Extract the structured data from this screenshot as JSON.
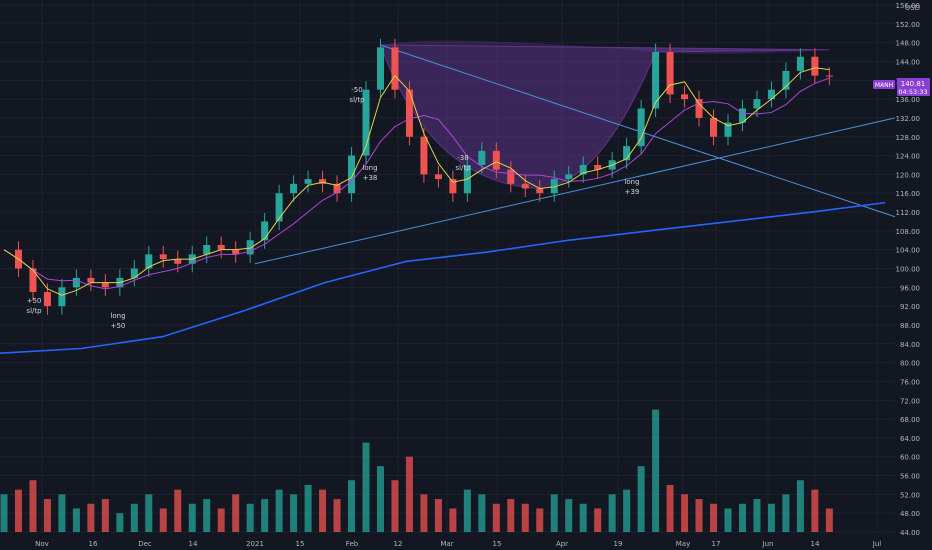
{
  "chart_data": {
    "type": "candlestick",
    "symbol": "MANH",
    "currency": "USD",
    "price_label": "140.81",
    "countdown": "04:53:33",
    "ylim": [
      44,
      156
    ],
    "y_ticks": [
      44,
      48,
      52,
      56,
      60,
      64,
      68,
      72,
      76,
      80,
      84,
      88,
      92,
      96,
      100,
      104,
      108,
      112,
      116,
      120,
      124,
      128,
      132,
      136,
      140,
      144,
      148,
      152,
      156
    ],
    "x_ticks": [
      "Nov",
      "16",
      "Dec",
      "14",
      "2021",
      "15",
      "Feb",
      "12",
      "Mar",
      "15",
      "Apr",
      "19",
      "May",
      "17",
      "Jun",
      "14",
      "Jul"
    ],
    "annotations": [
      {
        "lines": [
          "-50",
          "sl/tp"
        ],
        "color": "#d1d4dc"
      },
      {
        "lines": [
          "long",
          "+50"
        ],
        "color": "#d1d4dc"
      },
      {
        "lines": [
          "long",
          "+38"
        ],
        "color": "#d1d4dc"
      },
      {
        "lines": [
          "-38",
          "sl/tp"
        ],
        "color": "#d1d4dc"
      },
      {
        "lines": [
          "long",
          "+39"
        ],
        "color": "#d1d4dc"
      },
      {
        "lines": [
          "+50",
          "sl/tp"
        ],
        "color": "#d1d4dc"
      }
    ],
    "ohlc_close_points": [
      [
        0,
        104
      ],
      [
        4,
        100
      ],
      [
        8,
        95
      ],
      [
        12,
        92
      ],
      [
        16,
        96
      ],
      [
        20,
        98
      ],
      [
        24,
        97
      ],
      [
        28,
        96
      ],
      [
        32,
        98
      ],
      [
        36,
        100
      ],
      [
        40,
        103
      ],
      [
        44,
        102
      ],
      [
        48,
        101
      ],
      [
        52,
        103
      ],
      [
        56,
        105
      ],
      [
        60,
        104
      ],
      [
        64,
        103
      ],
      [
        68,
        106
      ],
      [
        72,
        110
      ],
      [
        76,
        116
      ],
      [
        80,
        118
      ],
      [
        84,
        119
      ],
      [
        88,
        118
      ],
      [
        92,
        116
      ],
      [
        96,
        124
      ],
      [
        100,
        138
      ],
      [
        104,
        147
      ],
      [
        108,
        138
      ],
      [
        112,
        128
      ],
      [
        116,
        120
      ],
      [
        120,
        119
      ],
      [
        124,
        116
      ],
      [
        128,
        122
      ],
      [
        132,
        125
      ],
      [
        136,
        121
      ],
      [
        140,
        118
      ],
      [
        144,
        117
      ],
      [
        148,
        116
      ],
      [
        152,
        119
      ],
      [
        156,
        120
      ],
      [
        160,
        122
      ],
      [
        164,
        121
      ],
      [
        168,
        123
      ],
      [
        172,
        126
      ],
      [
        176,
        134
      ],
      [
        180,
        146
      ],
      [
        184,
        137
      ],
      [
        188,
        136
      ],
      [
        192,
        132
      ],
      [
        196,
        128
      ],
      [
        200,
        131
      ],
      [
        204,
        134
      ],
      [
        208,
        136
      ],
      [
        212,
        138
      ],
      [
        216,
        142
      ],
      [
        220,
        145
      ],
      [
        224,
        141
      ],
      [
        228,
        140.8
      ]
    ],
    "volume_points": [
      [
        0,
        52
      ],
      [
        4,
        53
      ],
      [
        8,
        55
      ],
      [
        12,
        51
      ],
      [
        16,
        52
      ],
      [
        20,
        49
      ],
      [
        24,
        50
      ],
      [
        28,
        51
      ],
      [
        32,
        48
      ],
      [
        36,
        50
      ],
      [
        40,
        52
      ],
      [
        44,
        49
      ],
      [
        48,
        53
      ],
      [
        52,
        50
      ],
      [
        56,
        51
      ],
      [
        60,
        49
      ],
      [
        64,
        52
      ],
      [
        68,
        50
      ],
      [
        72,
        51
      ],
      [
        76,
        53
      ],
      [
        80,
        52
      ],
      [
        84,
        54
      ],
      [
        88,
        53
      ],
      [
        92,
        51
      ],
      [
        96,
        55
      ],
      [
        100,
        63
      ],
      [
        104,
        58
      ],
      [
        108,
        55
      ],
      [
        112,
        60
      ],
      [
        116,
        52
      ],
      [
        120,
        51
      ],
      [
        124,
        49
      ],
      [
        128,
        53
      ],
      [
        132,
        52
      ],
      [
        136,
        50
      ],
      [
        140,
        51
      ],
      [
        144,
        50
      ],
      [
        148,
        49
      ],
      [
        152,
        52
      ],
      [
        156,
        51
      ],
      [
        160,
        50
      ],
      [
        164,
        49
      ],
      [
        168,
        52
      ],
      [
        172,
        53
      ],
      [
        176,
        58
      ],
      [
        180,
        70
      ],
      [
        184,
        54
      ],
      [
        188,
        52
      ],
      [
        192,
        51
      ],
      [
        196,
        50
      ],
      [
        200,
        49
      ],
      [
        204,
        50
      ],
      [
        208,
        51
      ],
      [
        212,
        50
      ],
      [
        216,
        52
      ],
      [
        220,
        55
      ],
      [
        224,
        53
      ],
      [
        228,
        49
      ]
    ],
    "ma_slow_points": [
      [
        0,
        82
      ],
      [
        40,
        83
      ],
      [
        80,
        85.5
      ],
      [
        120,
        91
      ],
      [
        160,
        97
      ],
      [
        200,
        101.5
      ],
      [
        240,
        103.5
      ],
      [
        280,
        106
      ],
      [
        320,
        108
      ],
      [
        360,
        110
      ],
      [
        400,
        112
      ],
      [
        436,
        114
      ]
    ],
    "colors": {
      "up": "#26a69a",
      "down": "#ef5350",
      "ma_fast": "#e0d24a",
      "ma_mid": "#b044d6",
      "ma_slow": "#2962ff",
      "trend": "#4a90d9",
      "pattern_fill": "#6b3a9c",
      "label_bg": "#8a3fd4"
    },
    "xlabel": "",
    "ylabel": "",
    "title": "",
    "grid": true
  }
}
